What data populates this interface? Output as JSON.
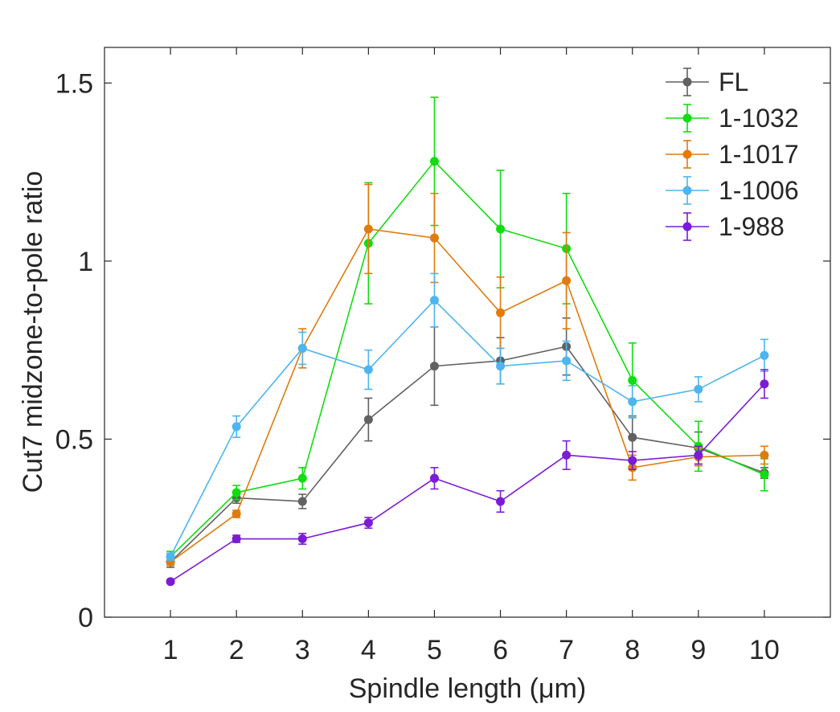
{
  "chart_data": {
    "type": "line",
    "title": "",
    "xlabel": "Spindle length (μm)",
    "ylabel": "Cut7 midzone-to-pole ratio",
    "xlim": [
      0,
      11
    ],
    "ylim": [
      0,
      1.6
    ],
    "x": [
      1,
      2,
      3,
      4,
      5,
      6,
      7,
      8,
      9,
      10
    ],
    "x_ticks": [
      "1",
      "2",
      "3",
      "4",
      "5",
      "6",
      "7",
      "8",
      "9",
      "10"
    ],
    "y_ticks": [
      "0",
      "0.5",
      "1",
      "1.5"
    ],
    "y_tick_values": [
      0,
      0.5,
      1,
      1.5
    ],
    "grid": false,
    "legend_position": "top-right",
    "series": [
      {
        "name": "FL",
        "color": "#616161",
        "values": [
          0.155,
          0.335,
          0.325,
          0.555,
          0.705,
          0.72,
          0.76,
          0.505,
          0.475,
          0.405
        ],
        "errors": [
          0.015,
          0.015,
          0.02,
          0.06,
          0.11,
          0.065,
          0.08,
          0.06,
          0.045,
          0.015
        ]
      },
      {
        "name": "1-1032",
        "color": "#11dd11",
        "values": [
          0.17,
          0.35,
          0.39,
          1.05,
          1.28,
          1.09,
          1.035,
          0.665,
          0.48,
          0.4
        ],
        "errors": [
          0.015,
          0.02,
          0.03,
          0.17,
          0.18,
          0.165,
          0.155,
          0.105,
          0.07,
          0.045
        ]
      },
      {
        "name": "1-1017",
        "color": "#e07b0d",
        "values": [
          0.155,
          0.29,
          0.755,
          1.09,
          1.065,
          0.855,
          0.945,
          0.42,
          0.45,
          0.455
        ],
        "errors": [
          0.01,
          0.01,
          0.055,
          0.125,
          0.125,
          0.1,
          0.135,
          0.035,
          0.025,
          0.025
        ]
      },
      {
        "name": "1-1006",
        "color": "#4db5ef",
        "values": [
          0.17,
          0.535,
          0.755,
          0.695,
          0.89,
          0.705,
          0.72,
          0.605,
          0.64,
          0.735
        ],
        "errors": [
          0.01,
          0.03,
          0.045,
          0.055,
          0.075,
          0.05,
          0.055,
          0.045,
          0.035,
          0.045
        ]
      },
      {
        "name": "1-988",
        "color": "#7b1cd4",
        "values": [
          0.1,
          0.22,
          0.22,
          0.265,
          0.39,
          0.325,
          0.455,
          0.44,
          0.455,
          0.655
        ],
        "errors": [
          0.005,
          0.01,
          0.015,
          0.015,
          0.03,
          0.03,
          0.04,
          0.025,
          0.025,
          0.04
        ]
      }
    ]
  }
}
